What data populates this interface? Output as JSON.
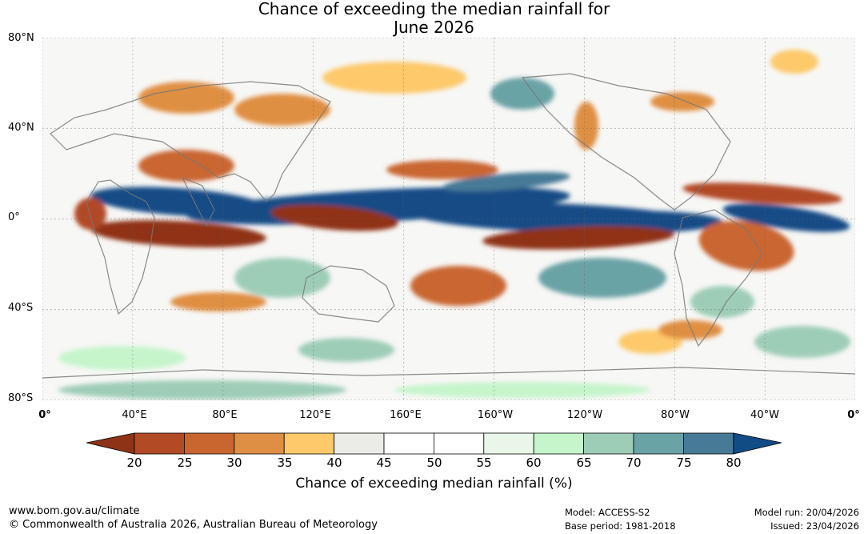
{
  "title": {
    "line1": "Chance of exceeding the median rainfall for",
    "line2": "June 2026"
  },
  "lat_labels": [
    "80°N",
    "40°N",
    "0°",
    "40°S",
    "80°S"
  ],
  "lon_labels": [
    "0°",
    "40°E",
    "80°E",
    "120°E",
    "160°E",
    "160°W",
    "120°W",
    "80°W",
    "40°W",
    "0°"
  ],
  "colorbar": {
    "ticks": [
      "20",
      "25",
      "30",
      "35",
      "40",
      "45",
      "50",
      "55",
      "60",
      "65",
      "70",
      "75",
      "80"
    ],
    "colors": [
      "#8f3317",
      "#b24a25",
      "#c96630",
      "#df8f43",
      "#fdc96a",
      "#ebebe7",
      "#ffffff",
      "#ffffff",
      "#eaf6ea",
      "#c6f5cc",
      "#9ecdb7",
      "#6aa3a6",
      "#477a96",
      "#124c86"
    ],
    "label": "Chance of exceeding median rainfall (%)"
  },
  "footer": {
    "url": "www.bom.gov.au/climate",
    "copyright": "© Commonwealth of Australia 2026, Australian Bureau of Meteorology",
    "model": "Model: ACCESS-S2",
    "base_period": "Base period: 1981-2018",
    "model_run": "Model run: 20/04/2026",
    "issued": "Issued: 23/04/2026"
  }
}
